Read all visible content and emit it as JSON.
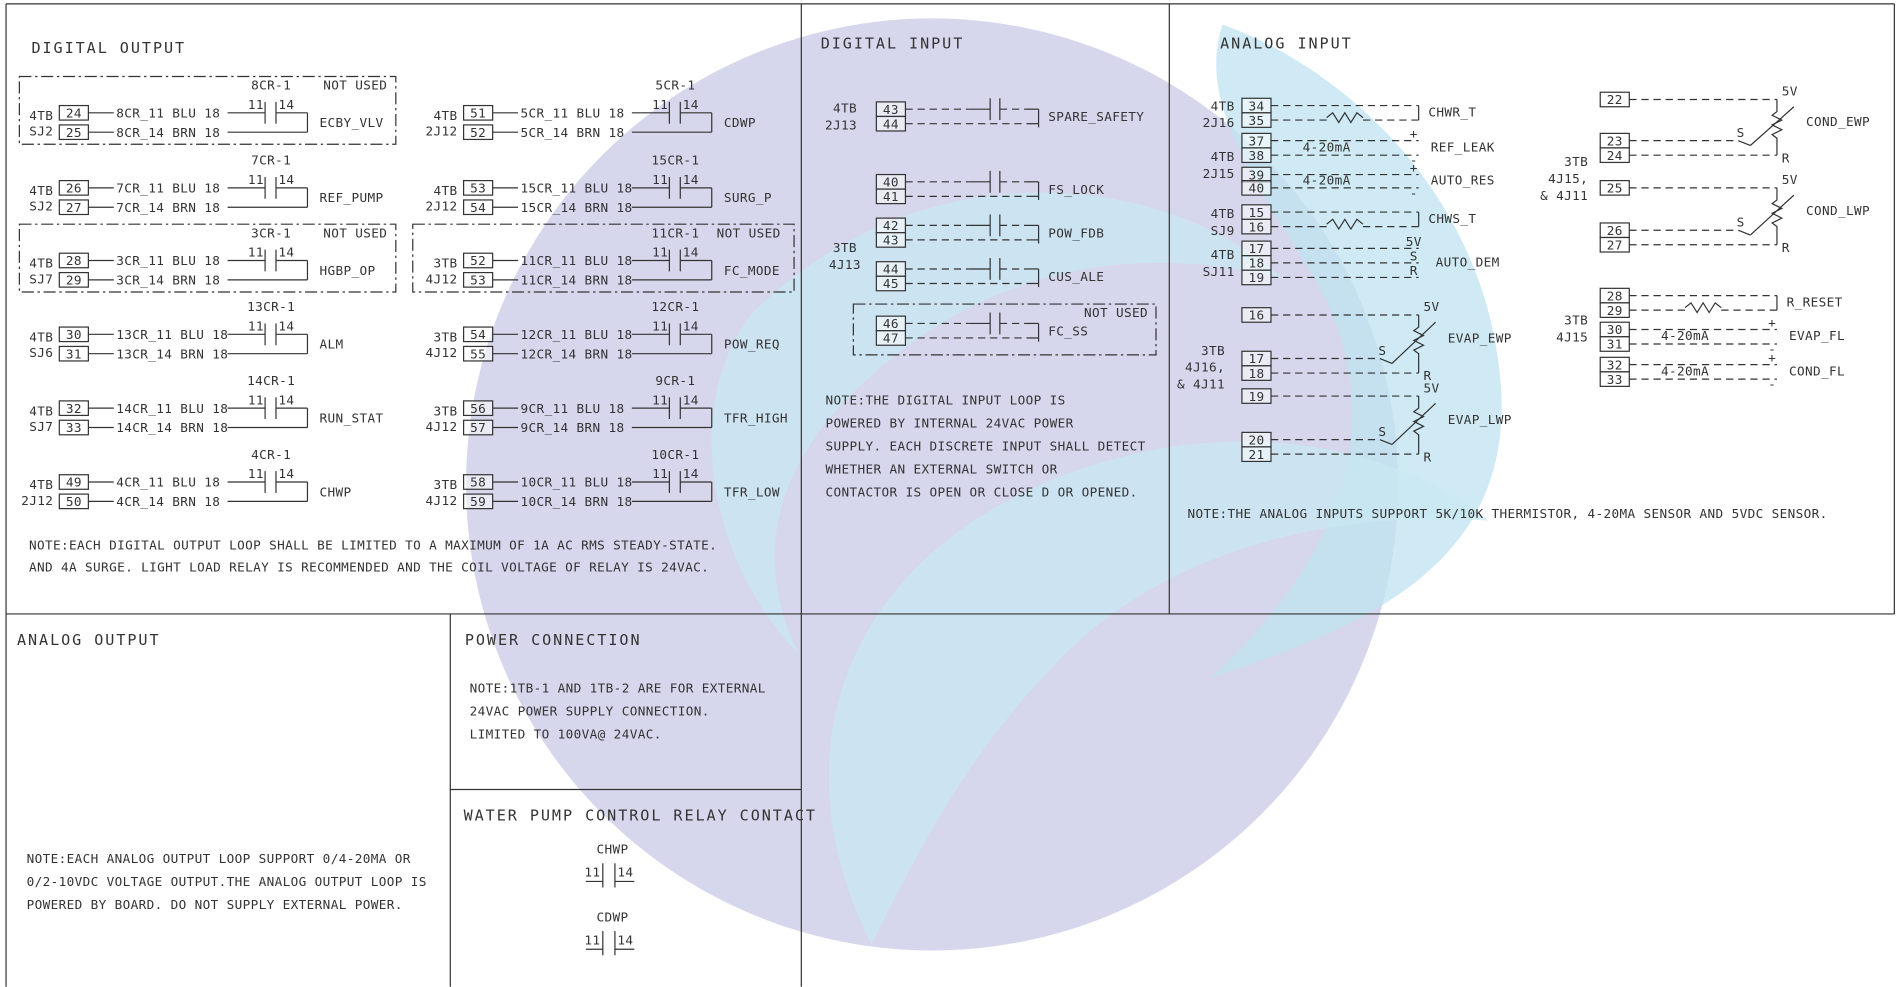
{
  "digital_output": {
    "title": "DIGITAL OUTPUT",
    "contact_pins": [
      "11",
      "14"
    ],
    "not_used": "NOT USED",
    "relays": [
      {
        "tb": "4TB",
        "jack": "SJ2",
        "terminals": [
          "24",
          "25"
        ],
        "wires": [
          "8CR_11 BLU 18",
          "8CR_14 BRN 18"
        ],
        "relay": "8CR-1",
        "label": "ECBY_VLV",
        "unused": true
      },
      {
        "tb": "4TB",
        "jack": "SJ2",
        "terminals": [
          "26",
          "27"
        ],
        "wires": [
          "7CR_11 BLU 18",
          "7CR_14 BRN 18"
        ],
        "relay": "7CR-1",
        "label": "REF_PUMP",
        "unused": false
      },
      {
        "tb": "4TB",
        "jack": "SJ7",
        "terminals": [
          "28",
          "29"
        ],
        "wires": [
          "3CR_11 BLU 18",
          "3CR_14 BRN 18"
        ],
        "relay": "3CR-1",
        "label": "HGBP_OP",
        "unused": true
      },
      {
        "tb": "4TB",
        "jack": "SJ6",
        "terminals": [
          "30",
          "31"
        ],
        "wires": [
          "13CR_11 BLU 18",
          "13CR_14 BRN 18"
        ],
        "relay": "13CR-1",
        "label": "ALM",
        "unused": false
      },
      {
        "tb": "4TB",
        "jack": "SJ7",
        "terminals": [
          "32",
          "33"
        ],
        "wires": [
          "14CR_11 BLU 18",
          "14CR_14 BRN 18"
        ],
        "relay": "14CR-1",
        "label": "RUN_STAT",
        "unused": false
      },
      {
        "tb": "4TB",
        "jack": "2J12",
        "terminals": [
          "49",
          "50"
        ],
        "wires": [
          "4CR_11 BLU 18",
          "4CR_14 BRN 18"
        ],
        "relay": "4CR-1",
        "label": "CHWP",
        "unused": false
      },
      {
        "tb": "4TB",
        "jack": "2J12",
        "terminals": [
          "51",
          "52"
        ],
        "wires": [
          "5CR_11 BLU 18",
          "5CR_14 BRN 18"
        ],
        "relay": "5CR-1",
        "label": "CDWP",
        "unused": false
      },
      {
        "tb": "4TB",
        "jack": "2J12",
        "terminals": [
          "53",
          "54"
        ],
        "wires": [
          "15CR_11 BLU 18",
          "15CR_14 BRN 18"
        ],
        "relay": "15CR-1",
        "label": "SURG_P",
        "unused": false
      },
      {
        "tb": "3TB",
        "jack": "4J12",
        "terminals": [
          "52",
          "53"
        ],
        "wires": [
          "11CR_11 BLU 18",
          "11CR_14 BRN 18"
        ],
        "relay": "11CR-1",
        "label": "FC_MODE",
        "unused": true
      },
      {
        "tb": "3TB",
        "jack": "4J12",
        "terminals": [
          "54",
          "55"
        ],
        "wires": [
          "12CR_11 BLU 18",
          "12CR_14 BRN 18"
        ],
        "relay": "12CR-1",
        "label": "POW_REQ",
        "unused": false
      },
      {
        "tb": "3TB",
        "jack": "4J12",
        "terminals": [
          "56",
          "57"
        ],
        "wires": [
          "9CR_11 BLU 18",
          "9CR_14 BRN 18"
        ],
        "relay": "9CR-1",
        "label": "TFR_HIGH",
        "unused": false
      },
      {
        "tb": "3TB",
        "jack": "4J12",
        "terminals": [
          "58",
          "59"
        ],
        "wires": [
          "10CR_11 BLU 18",
          "10CR_14 BRN 18"
        ],
        "relay": "10CR-1",
        "label": "TFR_LOW",
        "unused": false
      }
    ],
    "note": [
      "NOTE:EACH DIGITAL OUTPUT LOOP SHALL BE LIMITED TO A MAXIMUM OF 1A AC RMS STEADY-STATE.",
      "AND 4A SURGE. LIGHT LOAD RELAY IS RECOMMENDED AND THE COIL VOLTAGE OF RELAY IS 24VAC."
    ]
  },
  "digital_input": {
    "title": "DIGITAL INPUT",
    "not_used": "NOT USED",
    "groups": [
      {
        "lines": [
          "4TB",
          "2J13"
        ]
      },
      {
        "lines": [
          "3TB",
          "4J13"
        ]
      }
    ],
    "inputs": [
      {
        "terminals": [
          "43",
          "44"
        ],
        "label": "SPARE_SAFETY",
        "unused": false
      },
      {
        "terminals": [
          "40",
          "41"
        ],
        "label": "FS_LOCK",
        "unused": false
      },
      {
        "terminals": [
          "42",
          "43"
        ],
        "label": "POW_FDB",
        "unused": false
      },
      {
        "terminals": [
          "44",
          "45"
        ],
        "label": "CUS_ALE",
        "unused": false
      },
      {
        "terminals": [
          "46",
          "47"
        ],
        "label": "FC_SS",
        "unused": true
      }
    ],
    "note": [
      "NOTE:THE DIGITAL INPUT LOOP IS",
      "POWERED BY INTERNAL 24VAC POWER",
      "SUPPLY. EACH DISCRETE INPUT SHALL DETECT",
      "WHETHER AN EXTERNAL SWITCH OR",
      "CONTACTOR IS OPEN OR CLOSE D OR OPENED."
    ]
  },
  "analog_input": {
    "title": "ANALOG INPUT",
    "groups": [
      {
        "lines": [
          "4TB",
          "2J16"
        ]
      },
      {
        "lines": [
          "4TB",
          "2J15"
        ]
      },
      {
        "lines": [
          "4TB",
          "SJ9"
        ]
      },
      {
        "lines": [
          "4TB",
          "SJ11"
        ]
      },
      {
        "lines": [
          "3TB",
          "4J16,",
          "& 4J11"
        ]
      },
      {
        "lines": [
          "3TB",
          "4J15,",
          "& 4J11"
        ]
      },
      {
        "lines": [
          "3TB",
          "4J15"
        ]
      }
    ],
    "signals": [
      {
        "kind": "thermistor",
        "terminals": [
          "34",
          "35"
        ],
        "label": "CHWR_T"
      },
      {
        "kind": "current",
        "terminals": [
          "37",
          "38"
        ],
        "label": "REF_LEAK",
        "range": "4-20mA",
        "signs": [
          "+",
          "-"
        ]
      },
      {
        "kind": "current",
        "terminals": [
          "39",
          "40"
        ],
        "label": "AUTO_RES",
        "range": "4-20mA",
        "signs": [
          "+",
          "-"
        ]
      },
      {
        "kind": "thermistor",
        "terminals": [
          "15",
          "16"
        ],
        "label": "CHWS_T"
      },
      {
        "kind": "voltage",
        "terminals": [
          "17",
          "18",
          "19"
        ],
        "label": "AUTO_DEM",
        "pins": [
          "5V",
          "S",
          "R"
        ]
      },
      {
        "kind": "pot",
        "terminals": [
          "16",
          "17",
          "18"
        ],
        "label": "EVAP_EWP",
        "pins": [
          "5V",
          "S",
          "R"
        ]
      },
      {
        "kind": "pot",
        "terminals": [
          "19",
          "20",
          "21"
        ],
        "label": "EVAP_LWP",
        "pins": [
          "5V",
          "S",
          "R"
        ]
      },
      {
        "kind": "pot",
        "terminals": [
          "22",
          "23",
          "24"
        ],
        "label": "COND_EWP",
        "pins": [
          "5V",
          "S",
          "R"
        ]
      },
      {
        "kind": "pot",
        "terminals": [
          "25",
          "26",
          "27"
        ],
        "label": "COND_LWP",
        "pins": [
          "5V",
          "S",
          "R"
        ]
      },
      {
        "kind": "thermistor",
        "terminals": [
          "28",
          "29"
        ],
        "label": "R_RESET"
      },
      {
        "kind": "current",
        "terminals": [
          "30",
          "31"
        ],
        "label": "EVAP_FL",
        "range": "4-20mA",
        "signs": [
          "+",
          "-"
        ]
      },
      {
        "kind": "current",
        "terminals": [
          "32",
          "33"
        ],
        "label": "COND_FL",
        "range": "4-20mA",
        "signs": [
          "+",
          "-"
        ]
      }
    ],
    "note": [
      "NOTE:THE ANALOG INPUTS SUPPORT 5K/10K THERMISTOR, 4-20MA SENSOR AND 5VDC SENSOR."
    ]
  },
  "analog_output": {
    "title": "ANALOG OUTPUT",
    "note": [
      "NOTE:EACH ANALOG OUTPUT LOOP SUPPORT 0/4-20MA OR",
      "0/2-10VDC VOLTAGE OUTPUT.THE ANALOG OUTPUT LOOP IS",
      "POWERED BY BOARD. DO NOT SUPPLY EXTERNAL POWER."
    ]
  },
  "power_connection": {
    "title": "POWER CONNECTION",
    "note": [
      "NOTE:1TB-1 AND 1TB-2 ARE FOR EXTERNAL",
      "24VAC POWER SUPPLY CONNECTION.",
      "LIMITED TO 100VA@ 24VAC."
    ]
  },
  "water_pump": {
    "title": "WATER PUMP CONTROL RELAY CONTACT",
    "contact_pins": [
      "11",
      "14"
    ],
    "contacts": [
      {
        "name": "CHWP"
      },
      {
        "name": "CDWP"
      }
    ]
  }
}
